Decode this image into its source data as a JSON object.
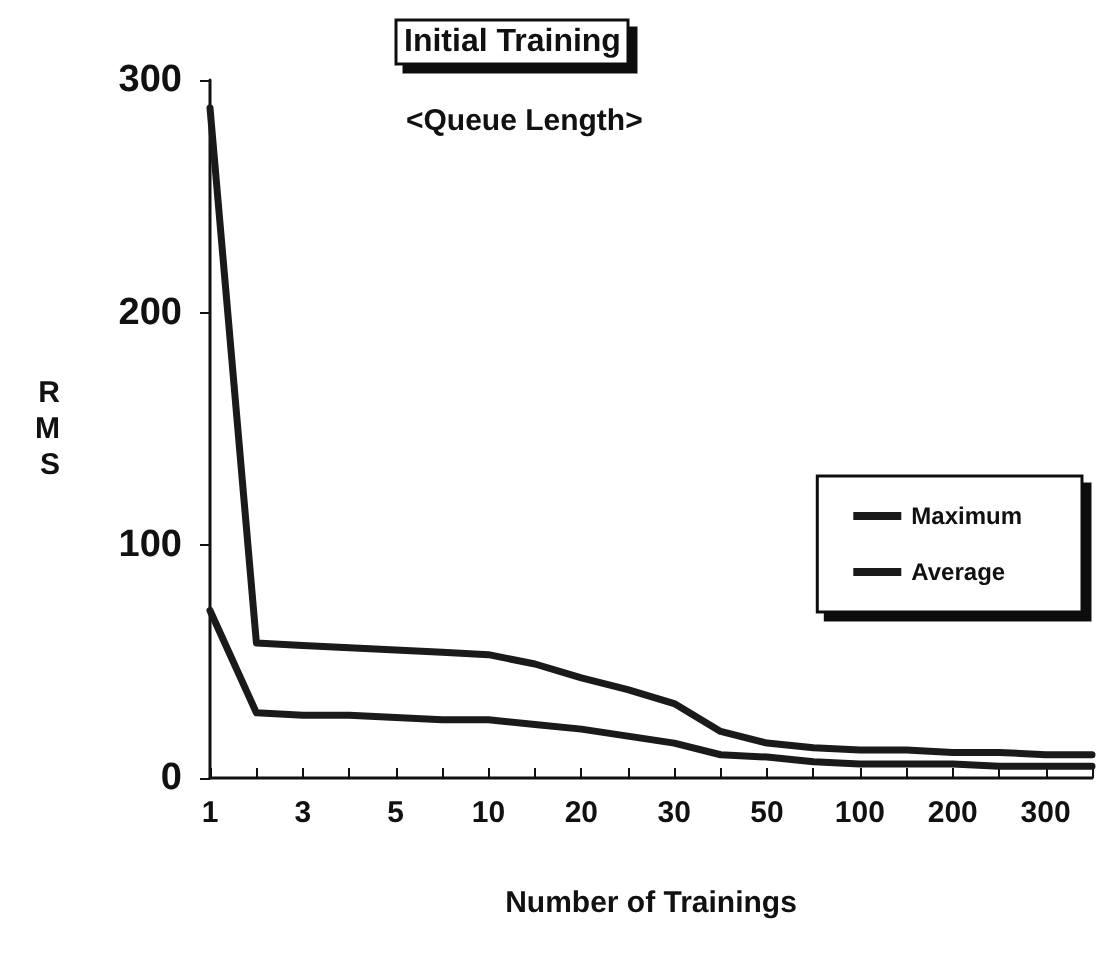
{
  "chart_data": {
    "type": "line",
    "title": "Initial Training",
    "subtitle": "<Queue Length>",
    "xlabel": "Number of Trainings",
    "ylabel": "RMS",
    "categories": [
      "1",
      null,
      "3",
      null,
      "5",
      null,
      "10",
      null,
      "20",
      null,
      "30",
      null,
      "50",
      null,
      "100",
      null,
      "200",
      null,
      "300",
      null
    ],
    "series": [
      {
        "name": "Maximum",
        "color": "#1a1a1a",
        "values": [
          288,
          58,
          57,
          56,
          55,
          54,
          53,
          49,
          43,
          38,
          32,
          20,
          15,
          13,
          12,
          12,
          11,
          11,
          10,
          10
        ]
      },
      {
        "name": "Average",
        "color": "#1a1a1a",
        "values": [
          72,
          28,
          27,
          27,
          26,
          25,
          25,
          23,
          21,
          18,
          15,
          10,
          9,
          7,
          6,
          6,
          6,
          5,
          5,
          5
        ]
      }
    ],
    "ylim": [
      0,
      300
    ],
    "yticks": [
      0,
      100,
      200,
      300
    ],
    "grid": false,
    "legend": "right",
    "marker": "none",
    "line_style": "solid"
  }
}
